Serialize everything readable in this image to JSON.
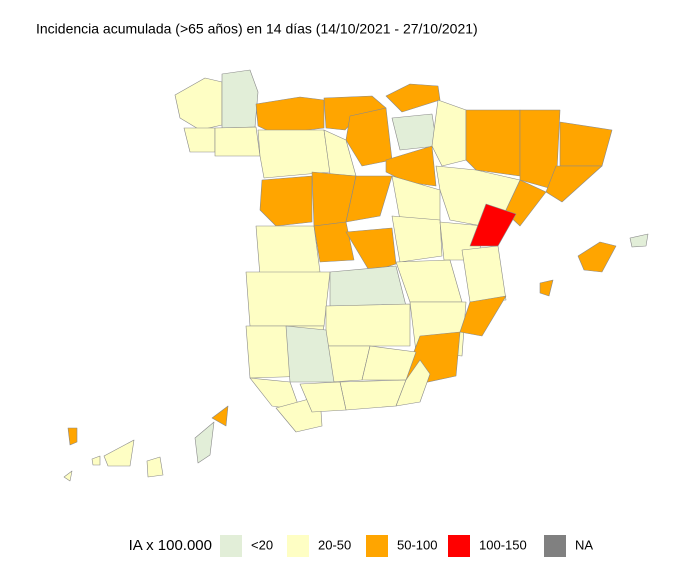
{
  "title": "Incidencia acumulada (>65 años) en 14 días (14/10/2021 - 27/10/2021)",
  "legend": {
    "title": "IA x 100.000",
    "items": [
      {
        "label": "<20",
        "color": "#e2eed8"
      },
      {
        "label": "20-50",
        "color": "#fefec4"
      },
      {
        "label": "50-100",
        "color": "#ffa500"
      },
      {
        "label": "100-150",
        "color": "#ff0000"
      },
      {
        "label": "NA",
        "color": "#808080"
      }
    ]
  }
}
